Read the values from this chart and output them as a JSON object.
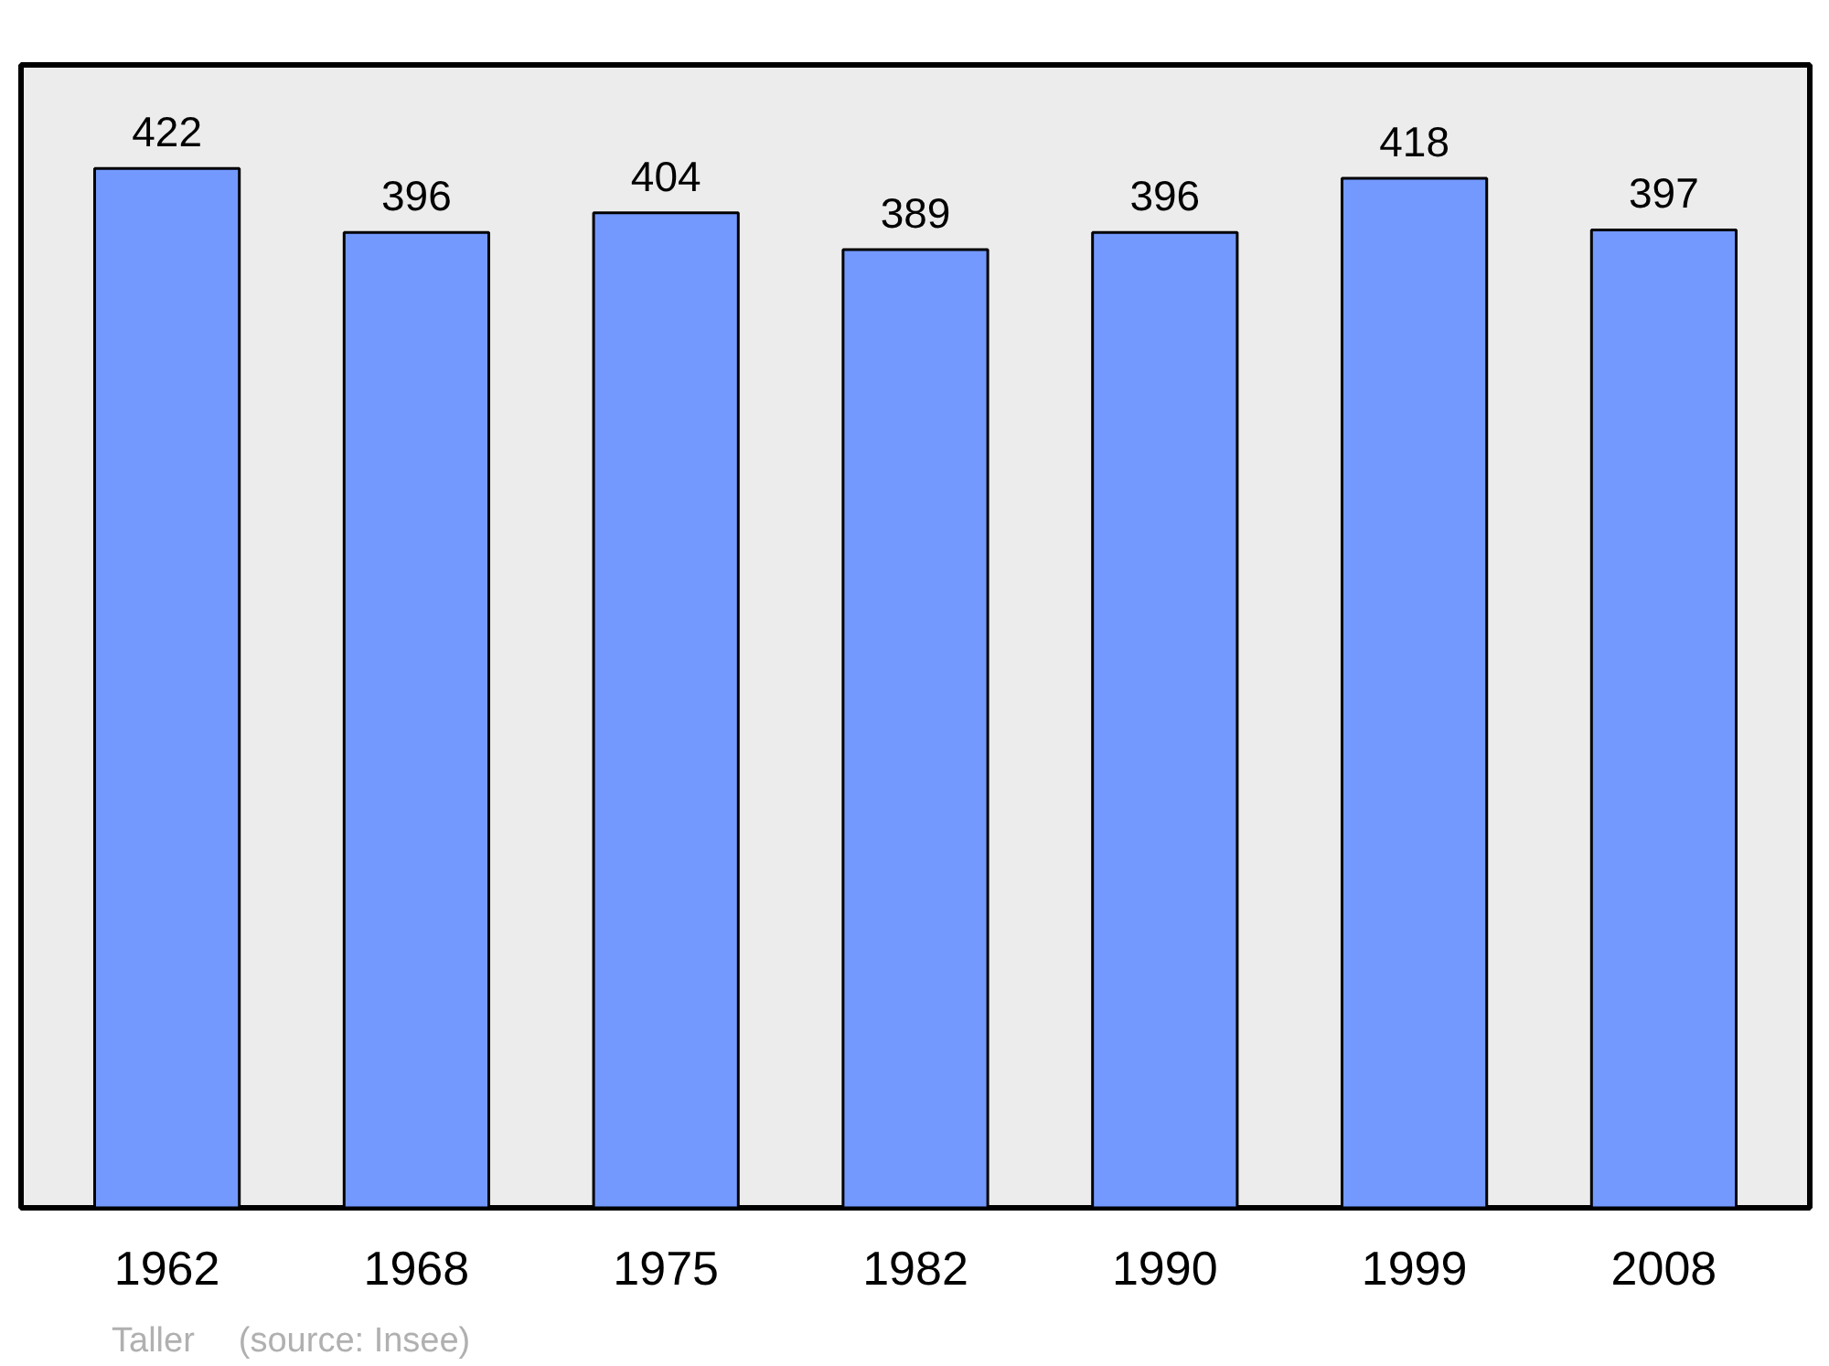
{
  "chart_data": {
    "type": "bar",
    "categories": [
      "1962",
      "1968",
      "1975",
      "1982",
      "1990",
      "1999",
      "2008"
    ],
    "values": [
      422,
      396,
      404,
      389,
      396,
      418,
      397
    ],
    "color": "#7399ff",
    "ylim": [
      0,
      464
    ],
    "data_labels": true,
    "grid": false,
    "annotations": [
      "Taller",
      "(source: Insee)"
    ]
  }
}
